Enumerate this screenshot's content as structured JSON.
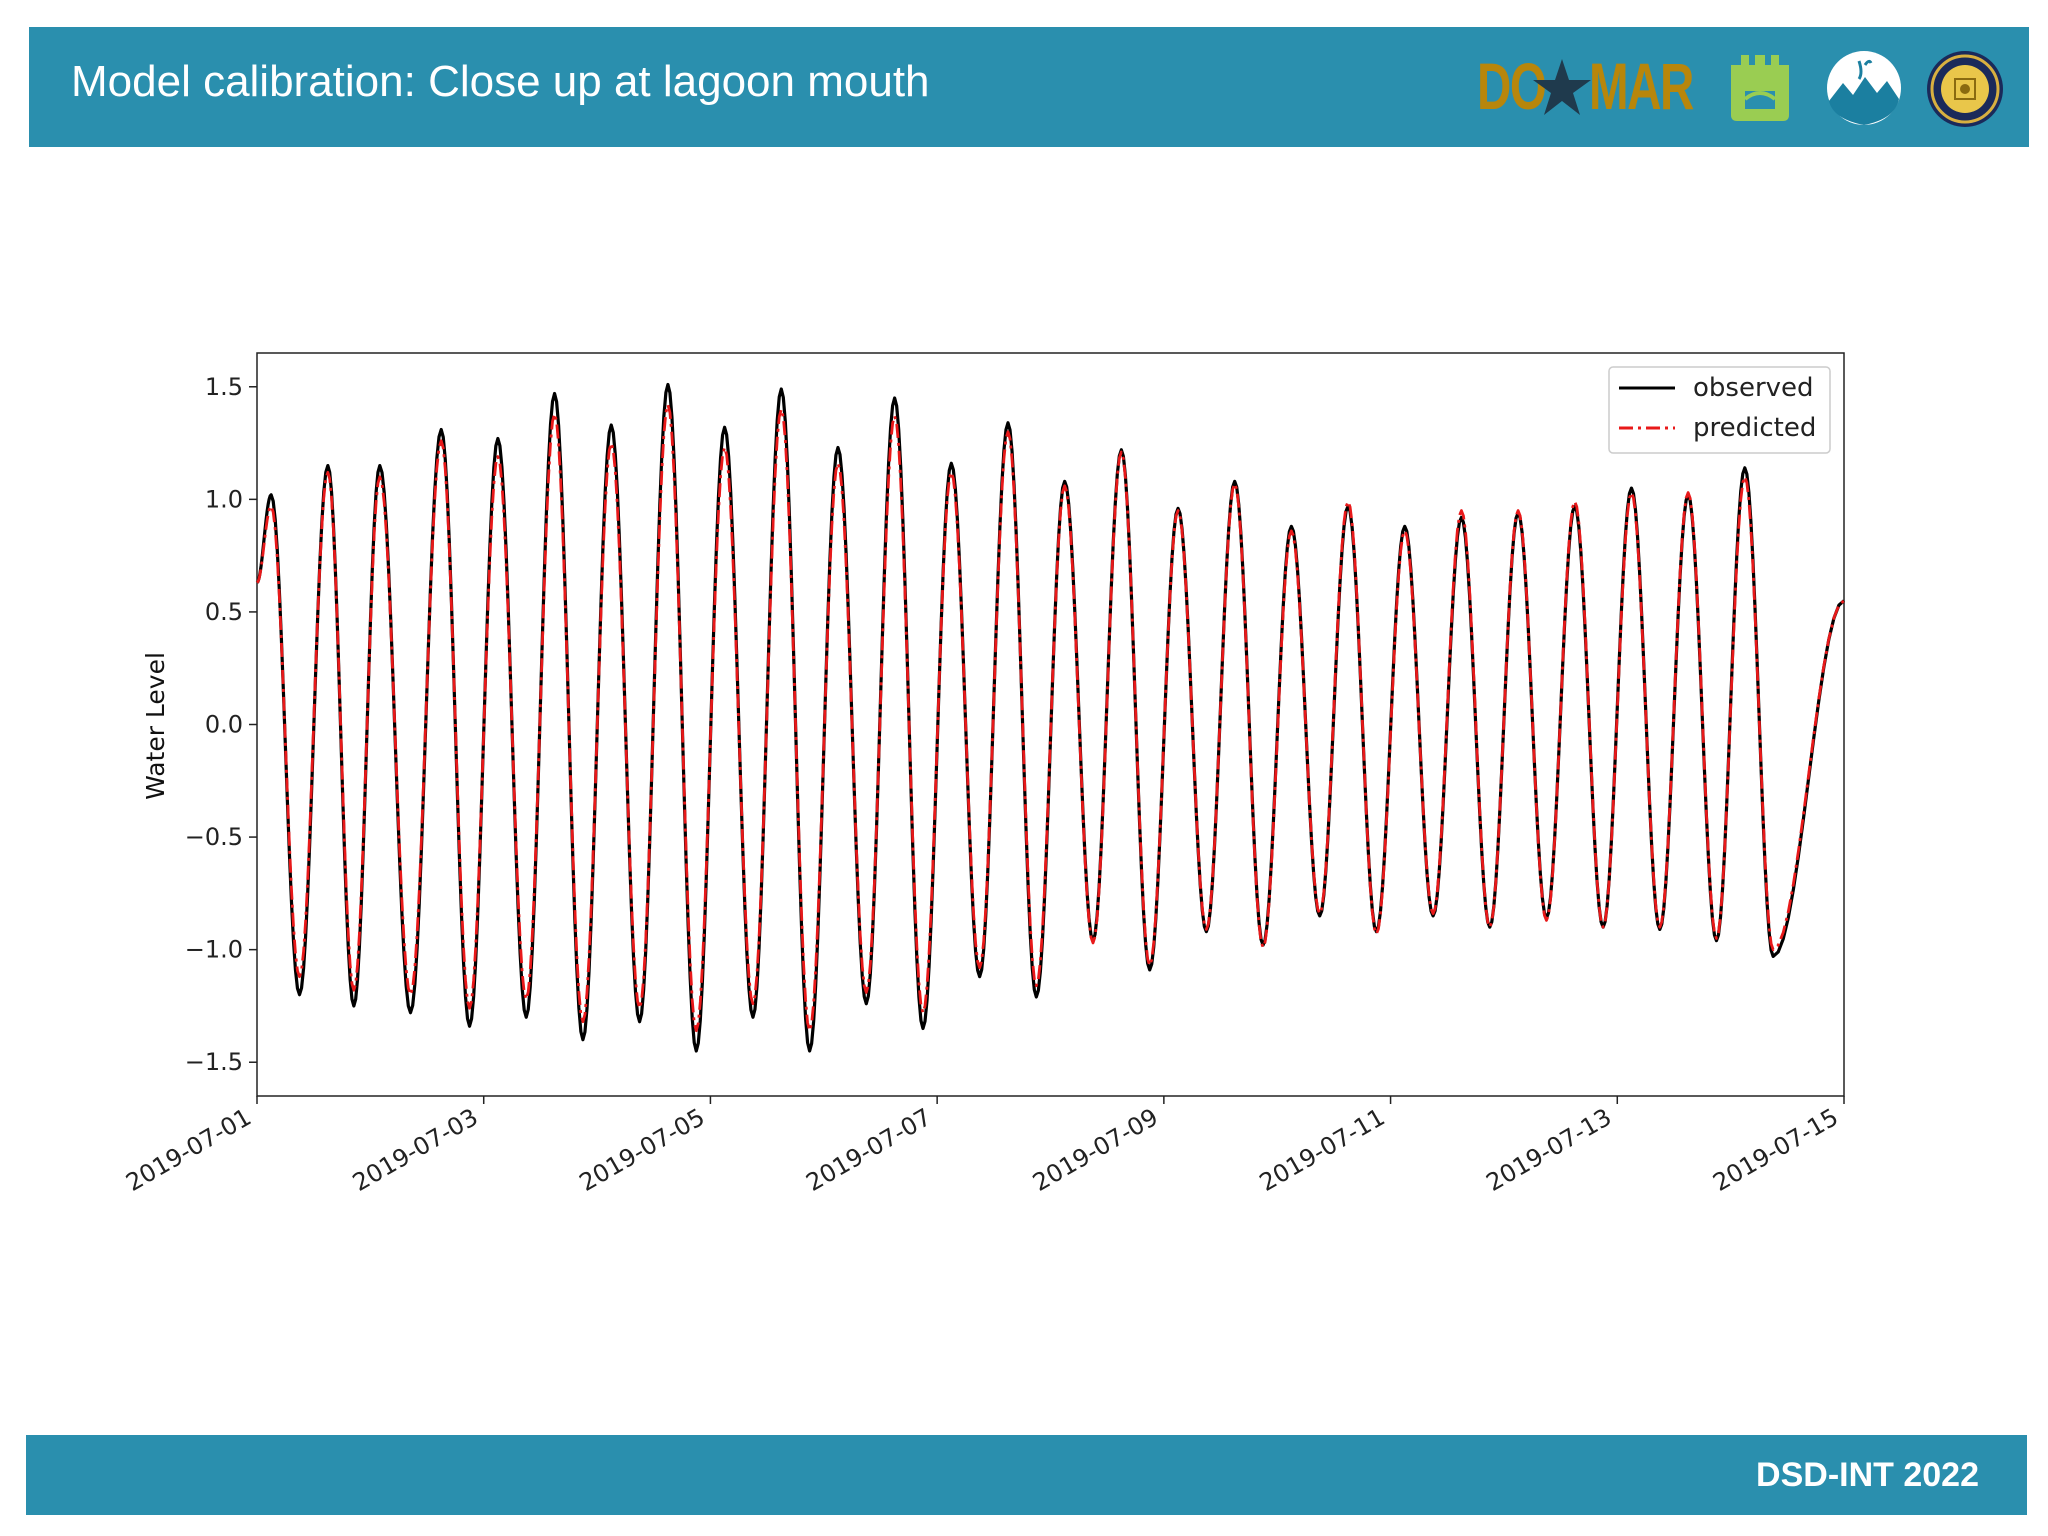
{
  "slide": {
    "title": "Model calibration: Close up at lagoon mouth",
    "footer": "DSD-INT 2022"
  },
  "logos": {
    "domar_text_left": "DO",
    "domar_text_right": "MAR",
    "logo_icons": [
      "domar-logo",
      "castle-logo",
      "wave-logo",
      "university-seal-logo"
    ],
    "colors": {
      "header": "#2a8fae",
      "domar_gold": "#b8860b",
      "domar_star": "#1f3a4d",
      "castle_green": "#9acd52"
    }
  },
  "chart_data": {
    "type": "line",
    "title": "",
    "xlabel": "",
    "ylabel": "Water Level",
    "xlim": [
      "2019-07-01",
      "2019-07-15"
    ],
    "ylim": [
      -1.65,
      1.65
    ],
    "yticks": [
      -1.5,
      -1.0,
      -0.5,
      0.0,
      0.5,
      1.0,
      1.5
    ],
    "ytick_labels": [
      "−1.5",
      "−1.0",
      "−0.5",
      "0.0",
      "0.5",
      "1.0",
      "1.5"
    ],
    "xticks": [
      "2019-07-01",
      "2019-07-03",
      "2019-07-05",
      "2019-07-07",
      "2019-07-09",
      "2019-07-11",
      "2019-07-13",
      "2019-07-15"
    ],
    "legend_position": "top-right",
    "grid": false,
    "start_value": 0.63,
    "end_value": 0.55,
    "series": [
      {
        "name": "observed",
        "color": "#000000",
        "style": "solid",
        "extremes": [
          [
            "2019-07-01 03:00",
            1.02
          ],
          [
            "2019-07-01 09:00",
            -1.2
          ],
          [
            "2019-07-01 15:00",
            1.15
          ],
          [
            "2019-07-01 20:30",
            -1.25
          ],
          [
            "2019-07-02 02:00",
            1.15
          ],
          [
            "2019-07-02 08:30",
            -1.28
          ],
          [
            "2019-07-02 15:00",
            1.31
          ],
          [
            "2019-07-02 21:00",
            -1.34
          ],
          [
            "2019-07-03 03:00",
            1.27
          ],
          [
            "2019-07-03 09:00",
            -1.3
          ],
          [
            "2019-07-03 15:00",
            1.47
          ],
          [
            "2019-07-03 21:00",
            -1.4
          ],
          [
            "2019-07-04 03:00",
            1.33
          ],
          [
            "2019-07-04 09:00",
            -1.32
          ],
          [
            "2019-07-04 15:00",
            1.51
          ],
          [
            "2019-07-04 21:00",
            -1.45
          ],
          [
            "2019-07-05 03:00",
            1.32
          ],
          [
            "2019-07-05 09:00",
            -1.3
          ],
          [
            "2019-07-05 15:00",
            1.49
          ],
          [
            "2019-07-05 21:00",
            -1.45
          ],
          [
            "2019-07-06 03:00",
            1.23
          ],
          [
            "2019-07-06 09:00",
            -1.24
          ],
          [
            "2019-07-06 15:00",
            1.45
          ],
          [
            "2019-07-06 21:00",
            -1.35
          ],
          [
            "2019-07-07 03:00",
            1.16
          ],
          [
            "2019-07-07 09:00",
            -1.12
          ],
          [
            "2019-07-07 15:00",
            1.34
          ],
          [
            "2019-07-07 21:00",
            -1.21
          ],
          [
            "2019-07-08 03:00",
            1.08
          ],
          [
            "2019-07-08 09:00",
            -0.96
          ],
          [
            "2019-07-08 15:00",
            1.22
          ],
          [
            "2019-07-08 21:00",
            -1.09
          ],
          [
            "2019-07-09 03:00",
            0.96
          ],
          [
            "2019-07-09 09:00",
            -0.92
          ],
          [
            "2019-07-09 15:00",
            1.08
          ],
          [
            "2019-07-09 21:00",
            -0.98
          ],
          [
            "2019-07-10 03:00",
            0.88
          ],
          [
            "2019-07-10 09:00",
            -0.85
          ],
          [
            "2019-07-10 15:00",
            0.97
          ],
          [
            "2019-07-10 21:00",
            -0.92
          ],
          [
            "2019-07-11 03:00",
            0.88
          ],
          [
            "2019-07-11 09:00",
            -0.85
          ],
          [
            "2019-07-11 15:00",
            0.92
          ],
          [
            "2019-07-11 21:00",
            -0.9
          ],
          [
            "2019-07-12 03:00",
            0.94
          ],
          [
            "2019-07-12 09:00",
            -0.86
          ],
          [
            "2019-07-12 15:00",
            0.97
          ],
          [
            "2019-07-12 21:00",
            -0.9
          ],
          [
            "2019-07-13 03:00",
            1.05
          ],
          [
            "2019-07-13 09:00",
            -0.91
          ],
          [
            "2019-07-13 15:00",
            1.02
          ],
          [
            "2019-07-13 21:00",
            -0.96
          ],
          [
            "2019-07-14 03:00",
            1.14
          ],
          [
            "2019-07-14 09:00",
            -1.03
          ]
        ]
      },
      {
        "name": "predicted",
        "color": "#e8191a",
        "style": "dashdot",
        "extremes": [
          [
            "2019-07-01 03:00",
            0.97
          ],
          [
            "2019-07-01 09:00",
            -1.12
          ],
          [
            "2019-07-01 15:00",
            1.12
          ],
          [
            "2019-07-01 20:30",
            -1.18
          ],
          [
            "2019-07-02 02:00",
            1.1
          ],
          [
            "2019-07-02 08:30",
            -1.2
          ],
          [
            "2019-07-02 15:00",
            1.26
          ],
          [
            "2019-07-02 21:00",
            -1.26
          ],
          [
            "2019-07-03 03:00",
            1.19
          ],
          [
            "2019-07-03 09:00",
            -1.22
          ],
          [
            "2019-07-03 15:00",
            1.38
          ],
          [
            "2019-07-03 21:00",
            -1.32
          ],
          [
            "2019-07-04 03:00",
            1.25
          ],
          [
            "2019-07-04 09:00",
            -1.26
          ],
          [
            "2019-07-04 15:00",
            1.42
          ],
          [
            "2019-07-04 21:00",
            -1.36
          ],
          [
            "2019-07-05 03:00",
            1.23
          ],
          [
            "2019-07-05 09:00",
            -1.24
          ],
          [
            "2019-07-05 15:00",
            1.4
          ],
          [
            "2019-07-05 21:00",
            -1.36
          ],
          [
            "2019-07-06 03:00",
            1.16
          ],
          [
            "2019-07-06 09:00",
            -1.19
          ],
          [
            "2019-07-06 15:00",
            1.37
          ],
          [
            "2019-07-06 21:00",
            -1.28
          ],
          [
            "2019-07-07 03:00",
            1.12
          ],
          [
            "2019-07-07 09:00",
            -1.08
          ],
          [
            "2019-07-07 15:00",
            1.3
          ],
          [
            "2019-07-07 21:00",
            -1.16
          ],
          [
            "2019-07-08 03:00",
            1.06
          ],
          [
            "2019-07-08 09:00",
            -0.97
          ],
          [
            "2019-07-08 15:00",
            1.21
          ],
          [
            "2019-07-08 21:00",
            -1.07
          ],
          [
            "2019-07-09 03:00",
            0.95
          ],
          [
            "2019-07-09 09:00",
            -0.91
          ],
          [
            "2019-07-09 15:00",
            1.07
          ],
          [
            "2019-07-09 21:00",
            -0.99
          ],
          [
            "2019-07-10 03:00",
            0.86
          ],
          [
            "2019-07-10 09:00",
            -0.84
          ],
          [
            "2019-07-10 15:00",
            0.99
          ],
          [
            "2019-07-10 21:00",
            -0.93
          ],
          [
            "2019-07-11 03:00",
            0.86
          ],
          [
            "2019-07-11 09:00",
            -0.84
          ],
          [
            "2019-07-11 15:00",
            0.95
          ],
          [
            "2019-07-11 21:00",
            -0.9
          ],
          [
            "2019-07-12 03:00",
            0.95
          ],
          [
            "2019-07-12 09:00",
            -0.87
          ],
          [
            "2019-07-12 15:00",
            0.99
          ],
          [
            "2019-07-12 21:00",
            -0.9
          ],
          [
            "2019-07-13 03:00",
            1.03
          ],
          [
            "2019-07-13 09:00",
            -0.9
          ],
          [
            "2019-07-13 15:00",
            1.03
          ],
          [
            "2019-07-13 21:00",
            -0.95
          ],
          [
            "2019-07-14 03:00",
            1.1
          ],
          [
            "2019-07-14 09:00",
            -1.0
          ]
        ]
      }
    ]
  }
}
